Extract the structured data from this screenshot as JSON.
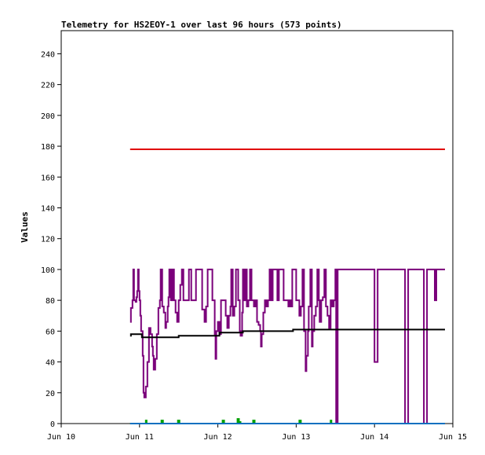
{
  "chart_data": {
    "type": "line",
    "title": "Telemetry for HS2EOY-1 over last 96 hours (573 points)",
    "xlabel": "",
    "ylabel": "Values",
    "xlim": [
      0,
      5
    ],
    "ylim": [
      0,
      255
    ],
    "x_ticks": [
      {
        "v": 0,
        "label": "Jun 10"
      },
      {
        "v": 1,
        "label": "Jun 11"
      },
      {
        "v": 2,
        "label": "Jun 12"
      },
      {
        "v": 3,
        "label": "Jun 13"
      },
      {
        "v": 4,
        "label": "Jun 14"
      },
      {
        "v": 5,
        "label": "Jun 15"
      }
    ],
    "y_ticks": [
      0,
      20,
      40,
      60,
      80,
      100,
      120,
      140,
      160,
      180,
      200,
      220,
      240
    ],
    "grid": false,
    "legend": "none",
    "series": [
      {
        "color": "#e00000",
        "values": [
          [
            0.88,
            178
          ],
          [
            4.9,
            178
          ]
        ]
      },
      {
        "color": "#7a007a",
        "values": [
          [
            0.88,
            66
          ],
          [
            0.89,
            75
          ],
          [
            0.91,
            80
          ],
          [
            0.92,
            100
          ],
          [
            0.93,
            80
          ],
          [
            0.95,
            79
          ],
          [
            0.96,
            82
          ],
          [
            0.97,
            86
          ],
          [
            0.98,
            100
          ],
          [
            0.99,
            86
          ],
          [
            1.0,
            80
          ],
          [
            1.01,
            70
          ],
          [
            1.02,
            60
          ],
          [
            1.04,
            44
          ],
          [
            1.05,
            20
          ],
          [
            1.06,
            17
          ],
          [
            1.08,
            24
          ],
          [
            1.1,
            40
          ],
          [
            1.12,
            62
          ],
          [
            1.14,
            58
          ],
          [
            1.16,
            50
          ],
          [
            1.17,
            44
          ],
          [
            1.18,
            35
          ],
          [
            1.2,
            42
          ],
          [
            1.22,
            58
          ],
          [
            1.24,
            75
          ],
          [
            1.26,
            80
          ],
          [
            1.27,
            100
          ],
          [
            1.29,
            76
          ],
          [
            1.31,
            72
          ],
          [
            1.33,
            62
          ],
          [
            1.34,
            66
          ],
          [
            1.36,
            76
          ],
          [
            1.37,
            82
          ],
          [
            1.38,
            100
          ],
          [
            1.4,
            80
          ],
          [
            1.42,
            100
          ],
          [
            1.44,
            80
          ],
          [
            1.46,
            72
          ],
          [
            1.48,
            66
          ],
          [
            1.5,
            80
          ],
          [
            1.52,
            90
          ],
          [
            1.54,
            100
          ],
          [
            1.56,
            80
          ],
          [
            1.6,
            80
          ],
          [
            1.63,
            100
          ],
          [
            1.66,
            80
          ],
          [
            1.7,
            80
          ],
          [
            1.72,
            100
          ],
          [
            1.76,
            100
          ],
          [
            1.8,
            74
          ],
          [
            1.83,
            66
          ],
          [
            1.85,
            76
          ],
          [
            1.87,
            100
          ],
          [
            1.9,
            100
          ],
          [
            1.93,
            80
          ],
          [
            1.96,
            58
          ],
          [
            1.97,
            42
          ],
          [
            1.98,
            60
          ],
          [
            2.0,
            66
          ],
          [
            2.02,
            58
          ],
          [
            2.04,
            80
          ],
          [
            2.08,
            80
          ],
          [
            2.1,
            70
          ],
          [
            2.12,
            62
          ],
          [
            2.14,
            70
          ],
          [
            2.16,
            76
          ],
          [
            2.17,
            100
          ],
          [
            2.19,
            70
          ],
          [
            2.21,
            76
          ],
          [
            2.23,
            100
          ],
          [
            2.26,
            80
          ],
          [
            2.28,
            60
          ],
          [
            2.29,
            57
          ],
          [
            2.31,
            72
          ],
          [
            2.32,
            100
          ],
          [
            2.34,
            80
          ],
          [
            2.36,
            100
          ],
          [
            2.37,
            76
          ],
          [
            2.39,
            80
          ],
          [
            2.41,
            100
          ],
          [
            2.43,
            80
          ],
          [
            2.46,
            76
          ],
          [
            2.48,
            80
          ],
          [
            2.5,
            66
          ],
          [
            2.52,
            64
          ],
          [
            2.54,
            60
          ],
          [
            2.55,
            50
          ],
          [
            2.56,
            58
          ],
          [
            2.58,
            72
          ],
          [
            2.6,
            80
          ],
          [
            2.62,
            76
          ],
          [
            2.64,
            80
          ],
          [
            2.66,
            100
          ],
          [
            2.68,
            80
          ],
          [
            2.7,
            100
          ],
          [
            2.74,
            100
          ],
          [
            2.76,
            80
          ],
          [
            2.78,
            100
          ],
          [
            2.8,
            100
          ],
          [
            2.84,
            80
          ],
          [
            2.88,
            80
          ],
          [
            2.9,
            76
          ],
          [
            2.92,
            80
          ],
          [
            2.94,
            76
          ],
          [
            2.95,
            100
          ],
          [
            2.98,
            100
          ],
          [
            3.0,
            80
          ],
          [
            3.02,
            80
          ],
          [
            3.04,
            70
          ],
          [
            3.06,
            76
          ],
          [
            3.08,
            100
          ],
          [
            3.1,
            60
          ],
          [
            3.12,
            34
          ],
          [
            3.13,
            44
          ],
          [
            3.15,
            60
          ],
          [
            3.16,
            76
          ],
          [
            3.18,
            100
          ],
          [
            3.2,
            50
          ],
          [
            3.21,
            60
          ],
          [
            3.23,
            70
          ],
          [
            3.25,
            76
          ],
          [
            3.27,
            100
          ],
          [
            3.29,
            80
          ],
          [
            3.3,
            66
          ],
          [
            3.32,
            80
          ],
          [
            3.34,
            82
          ],
          [
            3.36,
            100
          ],
          [
            3.38,
            76
          ],
          [
            3.4,
            70
          ],
          [
            3.42,
            62
          ],
          [
            3.44,
            80
          ],
          [
            3.46,
            76
          ],
          [
            3.48,
            80
          ],
          [
            3.5,
            100
          ],
          [
            3.51,
            0
          ],
          [
            3.53,
            100
          ],
          [
            3.55,
            100
          ],
          [
            3.6,
            100
          ],
          [
            3.8,
            100
          ],
          [
            3.98,
            100
          ],
          [
            4.0,
            40
          ],
          [
            4.03,
            40
          ],
          [
            4.04,
            100
          ],
          [
            4.2,
            100
          ],
          [
            4.32,
            100
          ],
          [
            4.38,
            100
          ],
          [
            4.39,
            0
          ],
          [
            4.41,
            0
          ],
          [
            4.43,
            100
          ],
          [
            4.6,
            100
          ],
          [
            4.62,
            100
          ],
          [
            4.63,
            0
          ],
          [
            4.65,
            0
          ],
          [
            4.67,
            100
          ],
          [
            4.75,
            100
          ],
          [
            4.77,
            80
          ],
          [
            4.79,
            100
          ],
          [
            4.9,
            100
          ]
        ]
      },
      {
        "color": "#000000",
        "values": [
          [
            0.88,
            57
          ],
          [
            0.89,
            58
          ],
          [
            1.02,
            58
          ],
          [
            1.03,
            56
          ],
          [
            1.48,
            56
          ],
          [
            1.5,
            57
          ],
          [
            2.0,
            57
          ],
          [
            2.02,
            59
          ],
          [
            2.3,
            59
          ],
          [
            2.32,
            60
          ],
          [
            2.56,
            60
          ],
          [
            2.58,
            60
          ],
          [
            2.94,
            60
          ],
          [
            2.96,
            61
          ],
          [
            4.9,
            61
          ]
        ]
      },
      {
        "color": "#00a000",
        "values": [
          [
            0.88,
            0
          ],
          [
            1.06,
            0
          ],
          [
            1.08,
            2
          ],
          [
            1.09,
            0
          ],
          [
            1.26,
            0
          ],
          [
            1.28,
            2
          ],
          [
            1.3,
            0
          ],
          [
            1.47,
            0
          ],
          [
            1.49,
            2
          ],
          [
            1.51,
            0
          ],
          [
            2.05,
            0
          ],
          [
            2.06,
            2
          ],
          [
            2.08,
            0
          ],
          [
            2.23,
            0
          ],
          [
            2.25,
            3
          ],
          [
            2.27,
            1
          ],
          [
            2.29,
            0
          ],
          [
            2.43,
            0
          ],
          [
            2.45,
            2
          ],
          [
            2.47,
            0
          ],
          [
            3.03,
            0
          ],
          [
            3.04,
            2
          ],
          [
            3.06,
            0
          ],
          [
            3.42,
            0
          ],
          [
            3.44,
            2
          ],
          [
            3.45,
            0
          ],
          [
            4.9,
            0
          ]
        ]
      },
      {
        "color": "#1070c0",
        "values": [
          [
            0.88,
            0
          ],
          [
            4.9,
            0
          ]
        ]
      }
    ]
  }
}
